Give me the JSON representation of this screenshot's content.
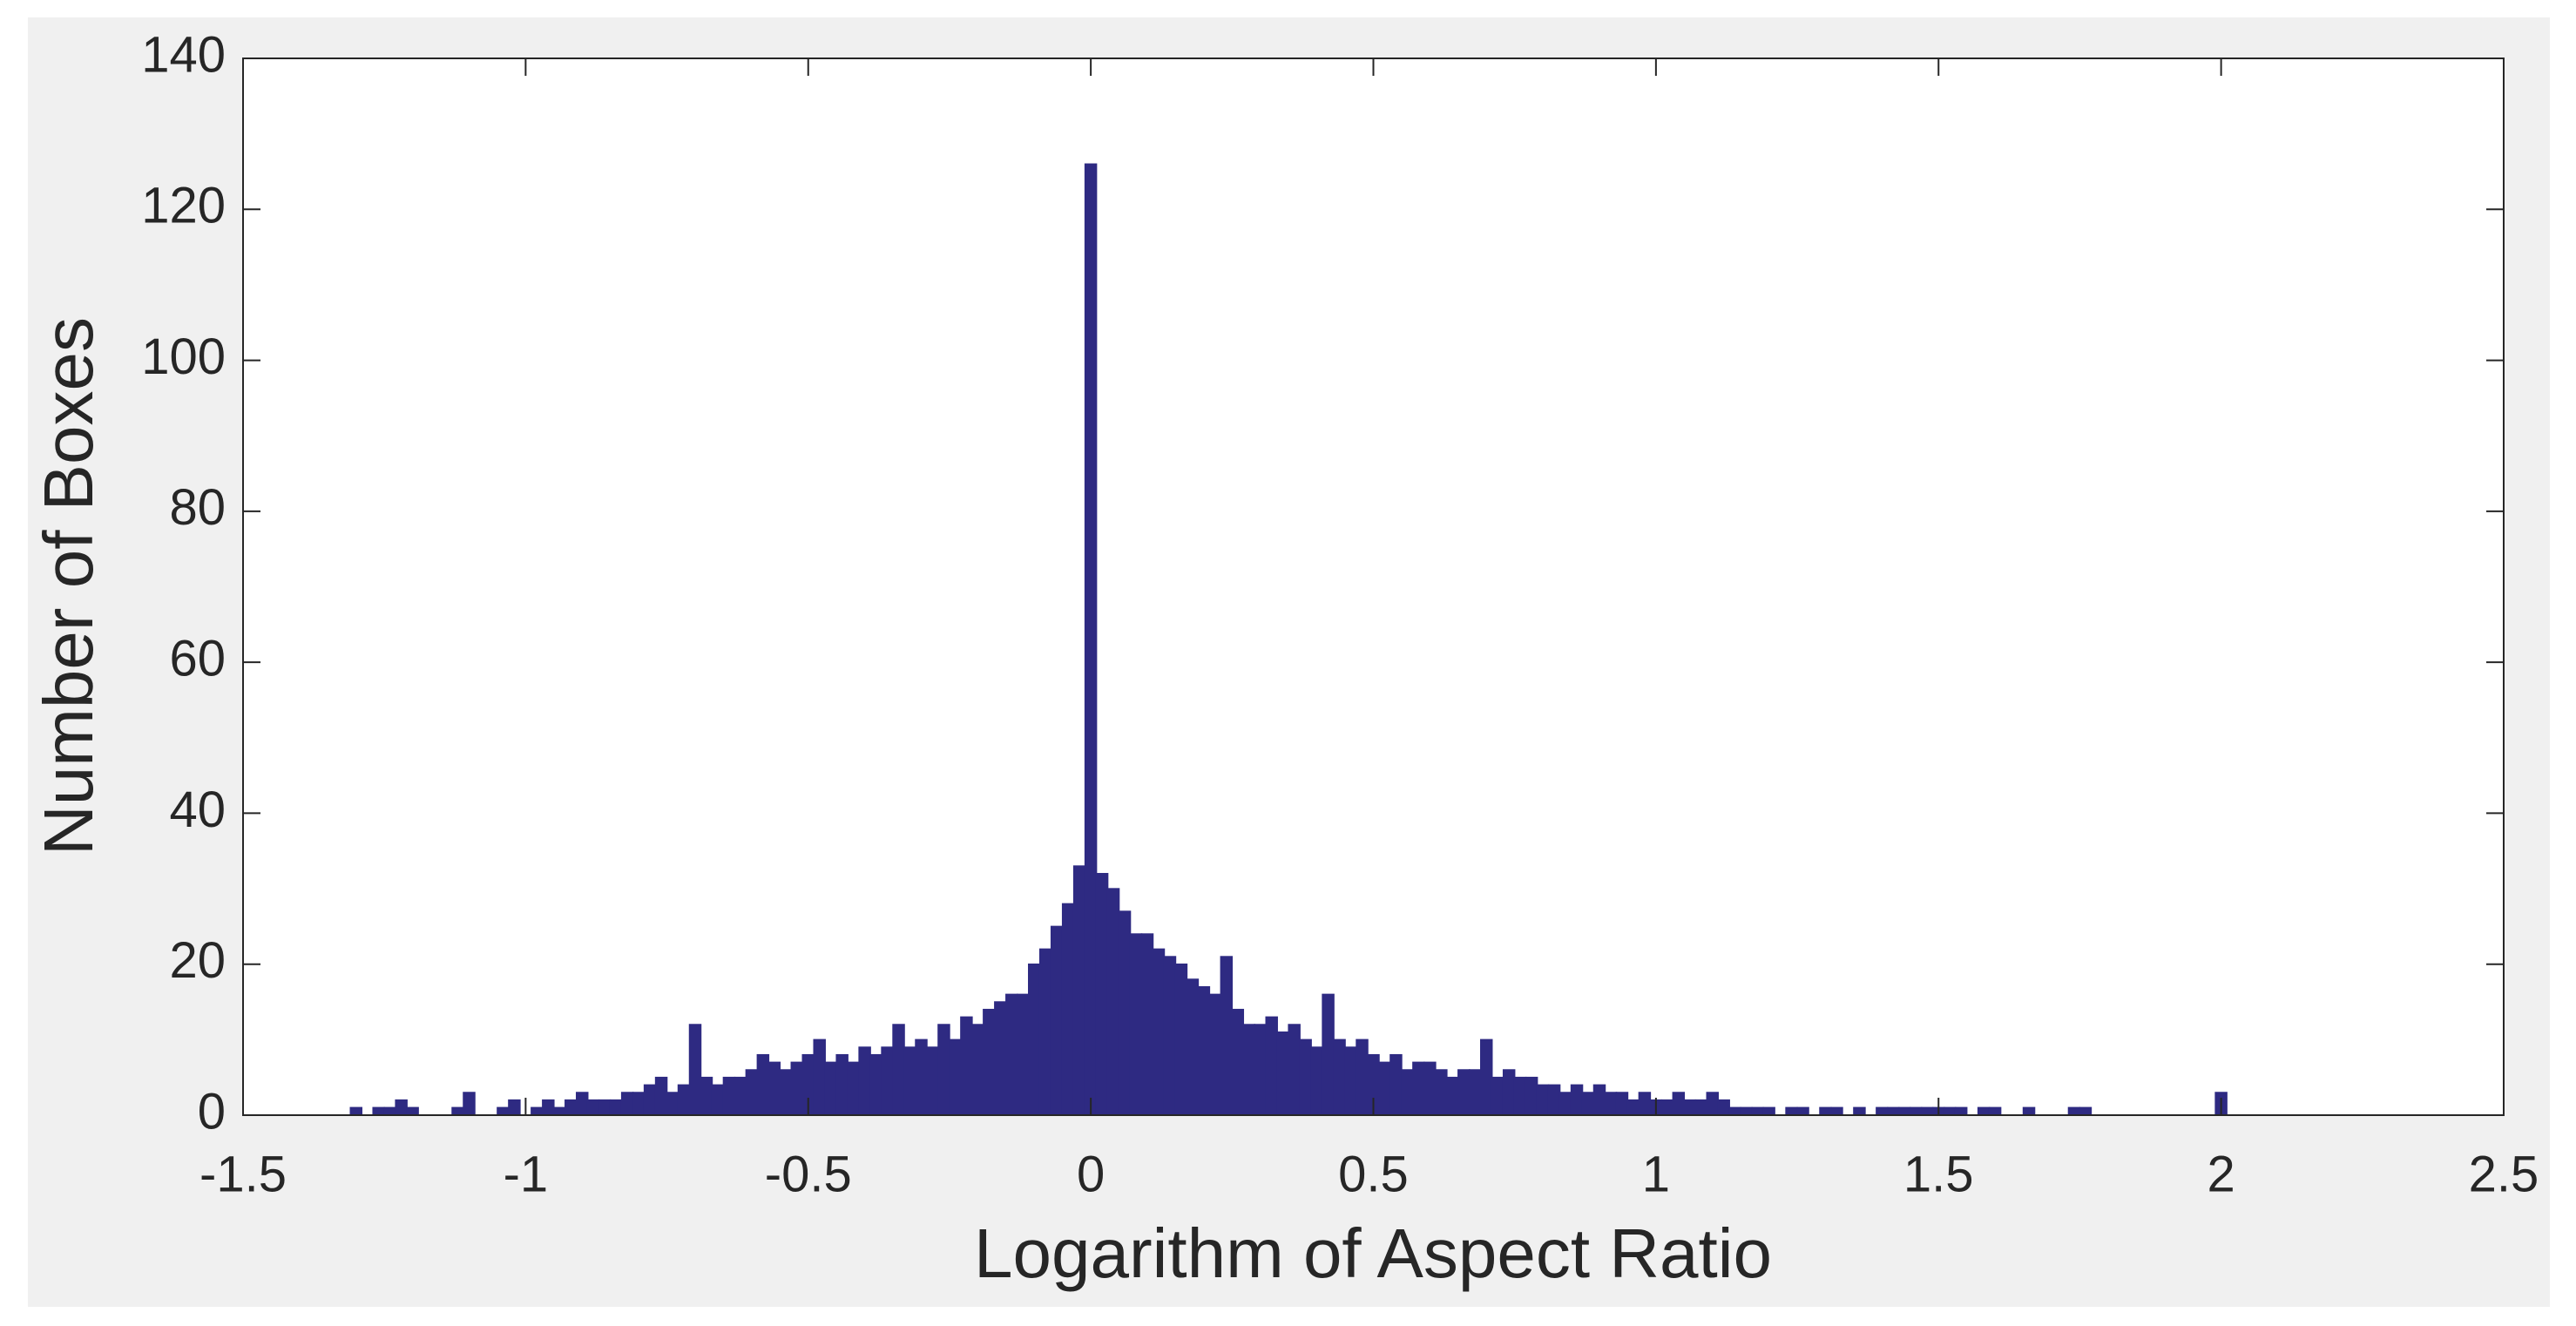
{
  "chart_data": {
    "type": "histogram",
    "xlabel": "Logarithm of Aspect Ratio",
    "ylabel": "Number of Boxes",
    "color": "#2e2a82",
    "xlim": [
      -1.5,
      2.5
    ],
    "ylim": [
      0,
      140
    ],
    "xticks": [
      -1.5,
      -1,
      -0.5,
      0,
      0.5,
      1,
      1.5,
      2,
      2.5
    ],
    "yticks": [
      0,
      20,
      40,
      60,
      80,
      100,
      120,
      140
    ],
    "bins": [
      -1.31,
      -1.29,
      -1.27,
      -1.25,
      -1.23,
      -1.21,
      -1.19,
      -1.17,
      -1.15,
      -1.13,
      -1.11,
      -1.09,
      -1.07,
      -1.05,
      -1.03,
      -1.01,
      -0.99,
      -0.97,
      -0.95,
      -0.93,
      -0.91,
      -0.89,
      -0.87,
      -0.85,
      -0.83,
      -0.81,
      -0.79,
      -0.77,
      -0.75,
      -0.73,
      -0.71,
      -0.69,
      -0.67,
      -0.65,
      -0.63,
      -0.61,
      -0.59,
      -0.57,
      -0.55,
      -0.53,
      -0.51,
      -0.49,
      -0.47,
      -0.45,
      -0.43,
      -0.41,
      -0.39,
      -0.37,
      -0.35,
      -0.33,
      -0.31,
      -0.29,
      -0.27,
      -0.25,
      -0.23,
      -0.21,
      -0.19,
      -0.17,
      -0.15,
      -0.13,
      -0.11,
      -0.09,
      -0.07,
      -0.05,
      -0.03,
      -0.01,
      0.01,
      0.03,
      0.05,
      0.07,
      0.09,
      0.11,
      0.13,
      0.15,
      0.17,
      0.19,
      0.21,
      0.23,
      0.25,
      0.27,
      0.29,
      0.31,
      0.33,
      0.35,
      0.37,
      0.39,
      0.41,
      0.43,
      0.45,
      0.47,
      0.49,
      0.51,
      0.53,
      0.55,
      0.57,
      0.59,
      0.61,
      0.63,
      0.65,
      0.67,
      0.69,
      0.71,
      0.73,
      0.75,
      0.77,
      0.79,
      0.81,
      0.83,
      0.85,
      0.87,
      0.89,
      0.91,
      0.93,
      0.95,
      0.97,
      0.99,
      1.01,
      1.03,
      1.05,
      1.07,
      1.09,
      1.11,
      1.13,
      1.15,
      1.17,
      1.19,
      1.21,
      1.23,
      1.25,
      1.27,
      1.29,
      1.31,
      1.33,
      1.35,
      1.37,
      1.39,
      1.41,
      1.43,
      1.45,
      1.47,
      1.49,
      1.51,
      1.53,
      1.55,
      1.57,
      1.59,
      1.61,
      1.63,
      1.65,
      1.67,
      1.69,
      1.71,
      1.73,
      1.75,
      1.77,
      1.79,
      1.81,
      1.83,
      1.85,
      1.87,
      1.89,
      1.91,
      1.93,
      1.95,
      1.97,
      1.99,
      2.01
    ],
    "values": [
      1,
      0,
      1,
      1,
      2,
      1,
      0,
      0,
      0,
      1,
      3,
      0,
      0,
      1,
      2,
      0,
      1,
      2,
      1,
      2,
      3,
      2,
      2,
      2,
      3,
      3,
      4,
      5,
      3,
      4,
      12,
      5,
      4,
      5,
      5,
      6,
      8,
      7,
      6,
      7,
      8,
      10,
      7,
      8,
      7,
      9,
      8,
      9,
      12,
      9,
      10,
      9,
      12,
      10,
      13,
      12,
      14,
      15,
      16,
      16,
      20,
      22,
      25,
      28,
      33,
      126,
      32,
      30,
      27,
      24,
      24,
      22,
      21,
      20,
      18,
      17,
      16,
      21,
      14,
      12,
      12,
      13,
      11,
      12,
      10,
      9,
      16,
      10,
      9,
      10,
      8,
      7,
      8,
      6,
      7,
      7,
      6,
      5,
      6,
      6,
      10,
      5,
      6,
      5,
      5,
      4,
      4,
      3,
      4,
      3,
      4,
      3,
      3,
      2,
      3,
      2,
      2,
      3,
      2,
      2,
      3,
      2,
      1,
      1,
      1,
      1,
      0,
      1,
      1,
      0,
      1,
      1,
      0,
      1,
      0,
      1,
      1,
      1,
      1,
      1,
      1,
      1,
      1,
      0,
      1,
      1,
      0,
      0,
      1,
      0,
      0,
      0,
      1,
      1,
      0,
      0,
      0,
      0,
      0,
      0,
      0,
      0,
      0,
      0,
      0,
      3
    ]
  }
}
